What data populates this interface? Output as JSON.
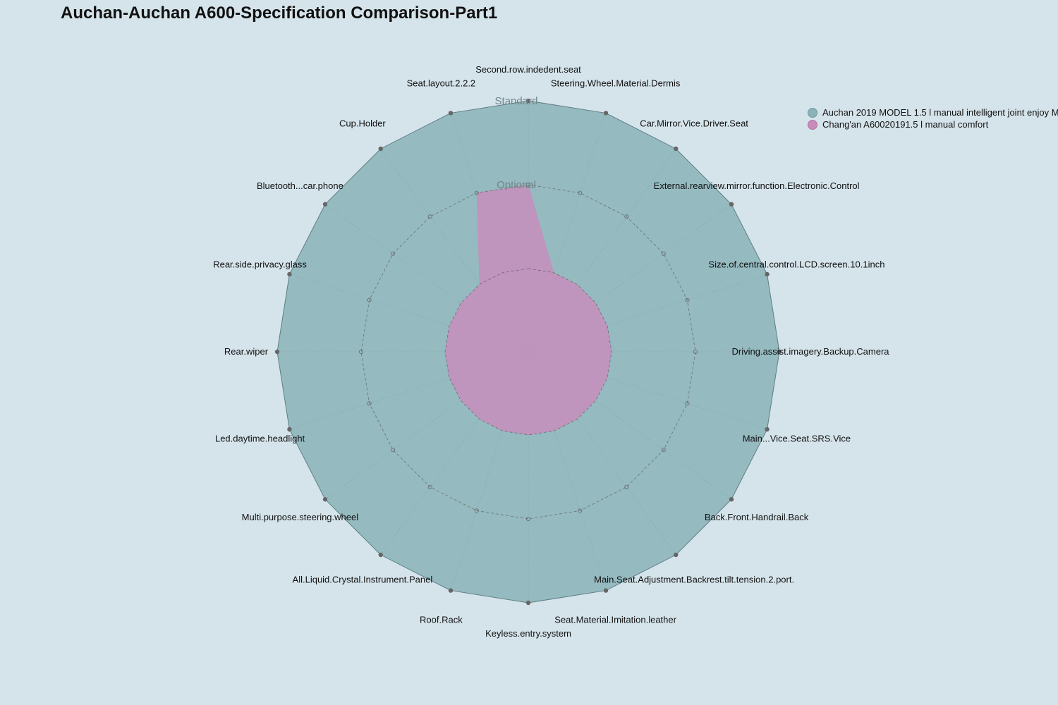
{
  "chart_data": {
    "type": "radar",
    "title": "Auchan-Auchan A600-Specification Comparison-Part1",
    "levels": [
      "Optional",
      "Standard"
    ],
    "axes": [
      "Second.row.indedent.seat",
      "Steering.Wheel.Material.Dermis",
      "Car.Mirror.Vice.Driver.Seat",
      "External.rearview.mirror.function.Electronic.Control",
      "Size.of.central.control.LCD.screen.10.1inch",
      "Driving.assist.imagery.Backup.Camera",
      "Main...Vice.Seat.SRS.Vice",
      "Back.Front.Handrail.Back",
      "Main.Seat.Adjustment.Backrest.tilt.tension.2.port.",
      "Seat.Material.Imitation.leather",
      "Keyless.entry.system",
      "Roof.Rack",
      "All.Liquid.Crystal.Instrument.Panel",
      "Multi.purpose.steering.wheel",
      "Led.daytime.headlight",
      "Rear.wiper",
      "Rear.side.privacy.glass",
      "Bluetooth...car.phone",
      "Cup.Holder",
      "Seat.layout.2.2.2"
    ],
    "series": [
      {
        "name": "Auchan 2019 MODEL 1.5 l manual intelligent joint enjoy M",
        "color": "#8ab3b8",
        "values": [
          2,
          2,
          2,
          2,
          2,
          2,
          2,
          2,
          2,
          2,
          2,
          2,
          2,
          2,
          2,
          2,
          2,
          2,
          2,
          2
        ]
      },
      {
        "name": "Chang'an A60020191.5 l manual comfort",
        "color": "#c98bbb",
        "values": [
          1,
          0,
          0,
          0,
          0,
          0,
          0,
          0,
          0,
          0,
          0,
          0,
          0,
          0,
          0,
          0,
          0,
          0,
          0,
          1
        ]
      }
    ]
  }
}
